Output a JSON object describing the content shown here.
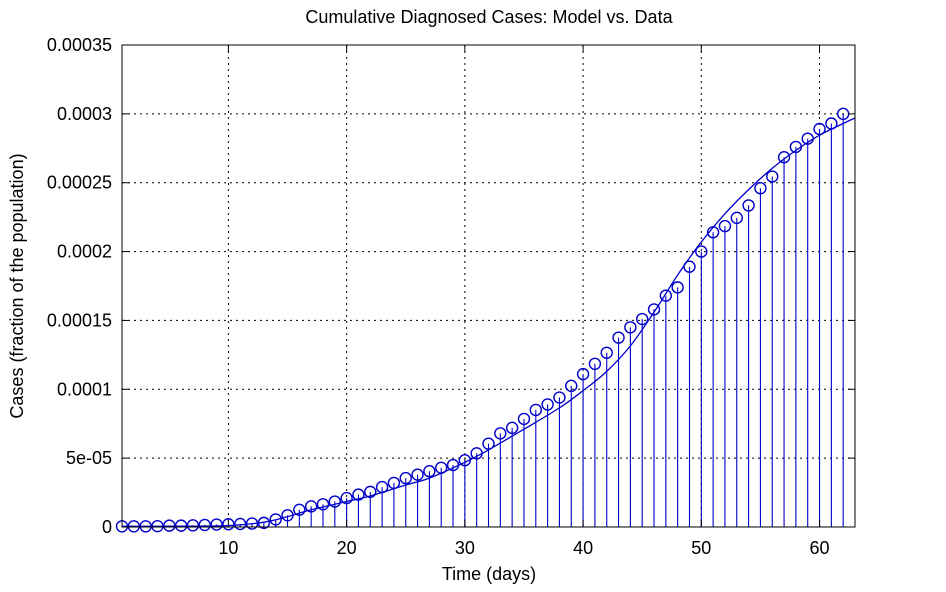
{
  "chart_data": {
    "type": "line",
    "title": "Cumulative Diagnosed Cases: Model vs. Data",
    "xlabel": "Time (days)",
    "ylabel": "Cases (fraction of the population)",
    "xlim": [
      1,
      63
    ],
    "ylim": [
      0,
      0.00035
    ],
    "x_ticks": [
      10,
      20,
      30,
      40,
      50,
      60
    ],
    "x_tick_labels": [
      "10",
      "20",
      "30",
      "40",
      "50",
      "60"
    ],
    "y_ticks": [
      0,
      5e-05,
      0.0001,
      0.00015,
      0.0002,
      0.00025,
      0.0003,
      0.00035
    ],
    "y_tick_labels": [
      "0",
      "5e-05",
      "0.0001",
      "0.00015",
      "0.0002",
      "0.00025",
      "0.0003",
      "0.00035"
    ],
    "grid": true,
    "color": "#0000cc",
    "series": [
      {
        "style": "stem",
        "marker": "circle",
        "x": [
          1,
          2,
          3,
          4,
          5,
          6,
          7,
          8,
          9,
          10,
          11,
          12,
          13,
          14,
          15,
          16,
          17,
          18,
          19,
          20,
          21,
          22,
          23,
          24,
          25,
          26,
          27,
          28,
          29,
          30,
          31,
          32,
          33,
          34,
          35,
          36,
          37,
          38,
          39,
          40,
          41,
          42,
          43,
          44,
          45,
          46,
          47,
          48,
          49,
          50,
          51,
          52,
          53,
          54,
          55,
          56,
          57,
          58,
          59,
          60,
          61,
          62
        ],
        "values": [
          5e-07,
          5e-07,
          5e-07,
          6e-07,
          1e-06,
          1e-06,
          1.2e-06,
          1.5e-06,
          1.8e-06,
          2e-06,
          2.2e-06,
          2.5e-06,
          3e-06,
          5.5e-06,
          8.5e-06,
          1.25e-05,
          1.5e-05,
          1.65e-05,
          1.85e-05,
          2.1e-05,
          2.35e-05,
          2.55e-05,
          2.9e-05,
          3.2e-05,
          3.55e-05,
          3.8e-05,
          4.05e-05,
          4.3e-05,
          4.5e-05,
          4.85e-05,
          5.35e-05,
          6.05e-05,
          6.8e-05,
          7.2e-05,
          7.85e-05,
          8.5e-05,
          8.9e-05,
          9.4e-05,
          0.0001025,
          0.000111,
          0.0001185,
          0.0001265,
          0.0001375,
          0.000145,
          0.000151,
          0.000158,
          0.000168,
          0.000174,
          0.000189,
          0.0002,
          0.000214,
          0.0002185,
          0.0002245,
          0.0002335,
          0.000246,
          0.0002545,
          0.0002685,
          0.000276,
          0.000282,
          0.000289,
          0.000293,
          0.0003
        ]
      },
      {
        "style": "line",
        "x": [
          1,
          5,
          10,
          13,
          15,
          17,
          20,
          22,
          25,
          27,
          30,
          32,
          35,
          38,
          40,
          42,
          44,
          46,
          48,
          50,
          52,
          54,
          56,
          58,
          60,
          62,
          63
        ],
        "values": [
          5e-07,
          6e-07,
          1e-06,
          3.5e-06,
          7.5e-06,
          1.25e-05,
          1.85e-05,
          2.25e-05,
          3.05e-05,
          3.55e-05,
          4.7e-05,
          5.6e-05,
          7.1e-05,
          8.65e-05,
          9.9e-05,
          0.000113,
          0.0001315,
          0.000156,
          0.000183,
          0.000207,
          0.0002275,
          0.000245,
          0.0002605,
          0.0002735,
          0.0002845,
          0.000293,
          0.000297
        ]
      }
    ]
  }
}
